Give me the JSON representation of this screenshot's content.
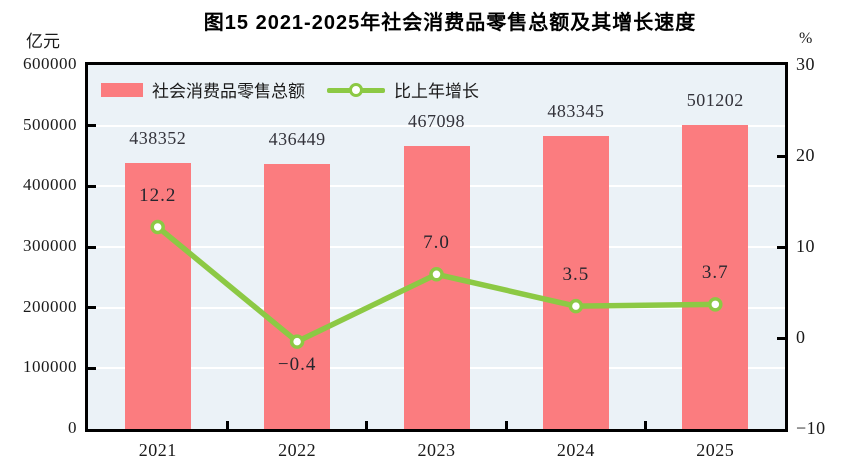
{
  "header": {
    "title": "图15  2021-2025年社会消费品零售总额及其增长速度",
    "left_axis_unit": "亿元",
    "right_axis_unit": "%"
  },
  "legend": {
    "bar_label": "社会消费品零售总额",
    "line_label": "比上年增长"
  },
  "colors": {
    "bar": "#fb7c7f",
    "line": "#8cc944",
    "marker_fill": "#ffffff",
    "plot_bg": "#ebf2f7",
    "grid": "#ffffff",
    "axis": "#000000"
  },
  "chart_data": {
    "type": "bar",
    "title": "图15  2021-2025年社会消费品零售总额及其增长速度",
    "categories": [
      "2021",
      "2022",
      "2023",
      "2024",
      "2025"
    ],
    "series": [
      {
        "name": "社会消费品零售总额",
        "type": "bar",
        "axis": "left",
        "values": [
          438352,
          436449,
          467098,
          483345,
          501202
        ],
        "value_labels": [
          "438352",
          "436449",
          "467098",
          "483345",
          "501202"
        ]
      },
      {
        "name": "比上年增长",
        "type": "line",
        "axis": "right",
        "values": [
          12.2,
          -0.4,
          7.0,
          3.5,
          3.7
        ],
        "value_labels": [
          "12.2",
          "−0.4",
          "7.0",
          "3.5",
          "3.7"
        ]
      }
    ],
    "left_axis": {
      "unit": "亿元",
      "min": 0,
      "max": 600000,
      "step": 100000,
      "tick_labels": [
        "600000",
        "500000",
        "400000",
        "300000",
        "200000",
        "100000",
        "0"
      ]
    },
    "right_axis": {
      "unit": "%",
      "min": -10,
      "max": 30,
      "step": 10,
      "tick_labels": [
        "30",
        "20",
        "10",
        "0",
        "−10"
      ]
    },
    "grid": true,
    "legend_position": "top-left-inside"
  }
}
